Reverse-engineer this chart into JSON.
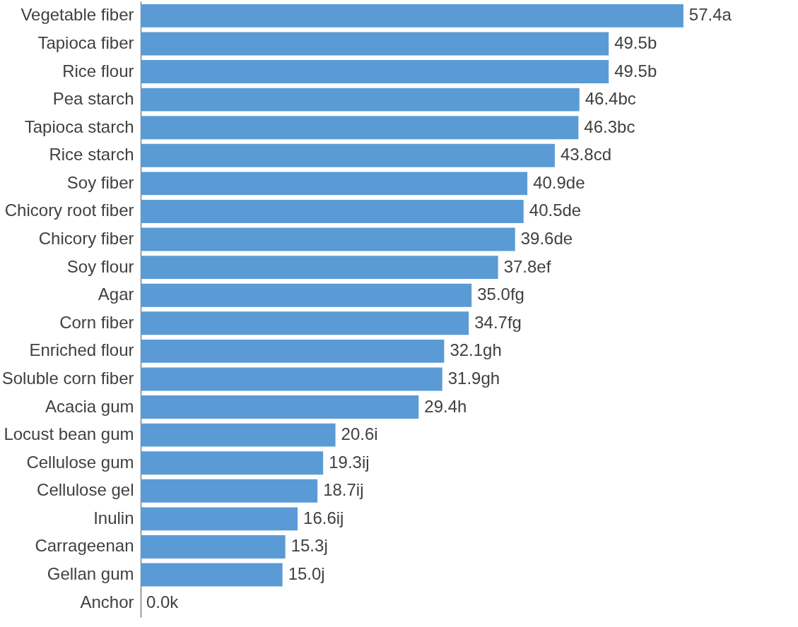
{
  "chart_data": {
    "type": "bar",
    "orientation": "horizontal",
    "color": "#5b9bd5",
    "categories": [
      "Vegetable fiber",
      "Tapioca fiber",
      "Rice flour",
      "Pea starch",
      "Tapioca starch",
      "Rice starch",
      "Soy fiber",
      "Chicory root fiber",
      "Chicory fiber",
      "Soy flour",
      "Agar",
      "Corn fiber",
      "Enriched flour",
      "Soluble corn fiber",
      "Acacia gum",
      "Locust bean gum",
      "Cellulose gum",
      "Cellulose gel",
      "Inulin",
      "Carrageenan",
      "Gellan gum",
      "Anchor"
    ],
    "values": [
      57.4,
      49.5,
      49.5,
      46.4,
      46.3,
      43.8,
      40.9,
      40.5,
      39.6,
      37.8,
      35.0,
      34.7,
      32.1,
      31.9,
      29.4,
      20.6,
      19.3,
      18.7,
      16.6,
      15.3,
      15.0,
      0.0
    ],
    "value_labels": [
      "57.4a",
      "49.5b",
      "49.5b",
      "46.4bc",
      "46.3bc",
      "43.8cd",
      "40.9de",
      "40.5de",
      "39.6de",
      "37.8ef",
      "35.0fg",
      "34.7fg",
      "32.1gh",
      "31.9gh",
      "29.4h",
      "20.6i",
      "19.3ij",
      "18.7ij",
      "16.6ij",
      "15.3j",
      "15.0j",
      "0.0k"
    ]
  }
}
